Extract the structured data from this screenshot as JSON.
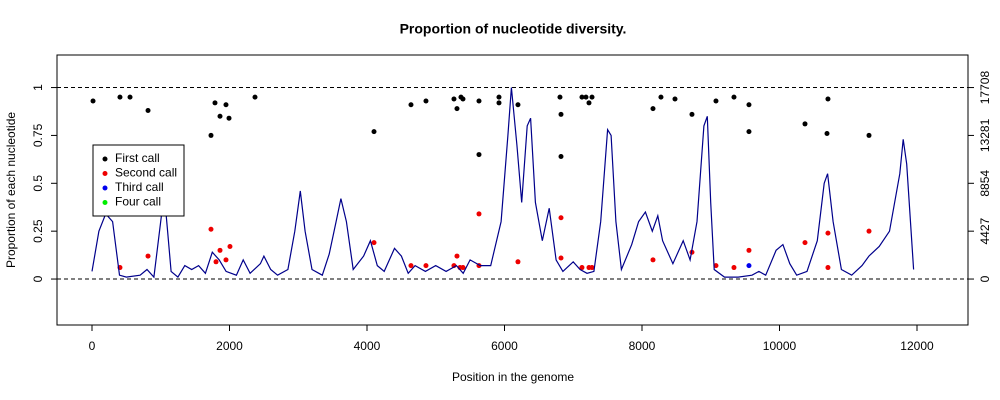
{
  "chart_data": {
    "type": "scatter",
    "title": "Proportion of nucleotide diversity.",
    "x_label": "Position in the genome",
    "y_label": "Proportion of each nucleotide",
    "xlim": [
      -509,
      12742
    ],
    "ylim": [
      -0.24,
      1.17
    ],
    "y2lim": [
      -4250,
      20718
    ],
    "xticks": [
      0,
      2000,
      4000,
      6000,
      8000,
      10000,
      12000
    ],
    "yticks": [
      0,
      0.25,
      0.5,
      0.75,
      1
    ],
    "y2ticks": [
      0,
      4427,
      8854,
      13281,
      17708
    ],
    "hlines": [
      0,
      1
    ],
    "legend": "top-left",
    "series": [
      {
        "name": "First call",
        "color": "#000000",
        "x": [
          15,
          407,
          553,
          815,
          1731,
          1789,
          1862,
          1949,
          1993,
          2371,
          4102,
          4640,
          4858,
          5265,
          5309,
          5367,
          5396,
          5629,
          5629,
          5920,
          5920,
          6196,
          6807,
          6822,
          6822,
          7127,
          7185,
          7229,
          7273,
          8160,
          8276,
          8480,
          8727,
          9076,
          9338,
          9556,
          9556,
          10371,
          10705,
          10691,
          11302
        ],
        "y": [
          0.93,
          0.95,
          0.95,
          0.88,
          0.75,
          0.92,
          0.85,
          0.91,
          0.84,
          0.95,
          0.77,
          0.91,
          0.93,
          0.94,
          0.89,
          0.95,
          0.94,
          0.93,
          0.65,
          0.95,
          0.92,
          0.91,
          0.95,
          0.86,
          0.64,
          0.95,
          0.95,
          0.92,
          0.95,
          0.89,
          0.95,
          0.94,
          0.86,
          0.93,
          0.95,
          0.91,
          0.77,
          0.81,
          0.94,
          0.76,
          0.75
        ]
      },
      {
        "name": "Second call",
        "color": "#ee0000",
        "x": [
          407,
          815,
          1731,
          1804,
          1862,
          1949,
          2007,
          4102,
          4640,
          4858,
          5265,
          5309,
          5353,
          5396,
          5629,
          5629,
          6196,
          6822,
          6822,
          7127,
          7229,
          7273,
          8160,
          8727,
          9076,
          9338,
          9556,
          10371,
          10705,
          10705,
          11302
        ],
        "y": [
          0.06,
          0.12,
          0.26,
          0.09,
          0.15,
          0.1,
          0.17,
          0.19,
          0.07,
          0.07,
          0.07,
          0.12,
          0.06,
          0.06,
          0.34,
          0.07,
          0.09,
          0.32,
          0.11,
          0.06,
          0.06,
          0.06,
          0.1,
          0.14,
          0.07,
          0.06,
          0.15,
          0.19,
          0.24,
          0.06,
          0.25
        ]
      },
      {
        "name": "Third call",
        "color": "#0000ee",
        "x": [
          9556
        ],
        "y": [
          0.07
        ]
      },
      {
        "name": "Four call",
        "color": "#00ee00",
        "x": [],
        "y": []
      },
      {
        "type": "line",
        "axis": "y2",
        "color": "#00008b",
        "x": [
          0,
          100,
          200,
          300,
          400,
          500,
          700,
          800,
          900,
          1000,
          1050,
          1100,
          1150,
          1250,
          1350,
          1450,
          1550,
          1650,
          1750,
          1850,
          1950,
          2100,
          2200,
          2300,
          2450,
          2500,
          2600,
          2700,
          2850,
          2950,
          3030,
          3100,
          3200,
          3350,
          3450,
          3550,
          3620,
          3700,
          3800,
          3950,
          4050,
          4150,
          4250,
          4400,
          4500,
          4600,
          4700,
          4850,
          5000,
          5150,
          5300,
          5400,
          5500,
          5650,
          5800,
          5950,
          6050,
          6100,
          6180,
          6250,
          6330,
          6380,
          6450,
          6550,
          6650,
          6750,
          6850,
          7000,
          7100,
          7200,
          7300,
          7400,
          7500,
          7550,
          7620,
          7700,
          7850,
          7950,
          8050,
          8150,
          8230,
          8300,
          8450,
          8600,
          8700,
          8800,
          8900,
          8950,
          9000,
          9050,
          9200,
          9400,
          9600,
          9700,
          9800,
          9950,
          10050,
          10150,
          10250,
          10400,
          10550,
          10650,
          10700,
          10780,
          10900,
          11050,
          11200,
          11300,
          11450,
          11600,
          11750,
          11800,
          11850,
          11950
        ],
        "y": [
          708,
          4427,
          6021,
          5312,
          354,
          177,
          354,
          885,
          177,
          5312,
          7969,
          4427,
          708,
          177,
          1240,
          885,
          1240,
          531,
          2479,
          1771,
          708,
          354,
          1771,
          531,
          1417,
          2125,
          885,
          354,
          885,
          4427,
          8146,
          4427,
          885,
          354,
          2302,
          5312,
          7437,
          5312,
          885,
          2125,
          3542,
          1240,
          708,
          2833,
          2125,
          531,
          1240,
          708,
          1240,
          708,
          1240,
          531,
          1771,
          1240,
          1240,
          5312,
          13281,
          17708,
          12396,
          7083,
          14166,
          14875,
          7083,
          3542,
          6552,
          1771,
          708,
          1594,
          885,
          531,
          708,
          5312,
          13812,
          13281,
          5312,
          885,
          3187,
          5312,
          6198,
          4427,
          5844,
          3542,
          1417,
          3542,
          1771,
          5312,
          14166,
          15052,
          7083,
          885,
          177,
          177,
          354,
          708,
          354,
          2656,
          3187,
          1417,
          354,
          708,
          3542,
          8854,
          9739,
          5312,
          885,
          354,
          1240,
          2125,
          3010,
          4427,
          9739,
          12927,
          10625,
          885
        ]
      }
    ]
  }
}
